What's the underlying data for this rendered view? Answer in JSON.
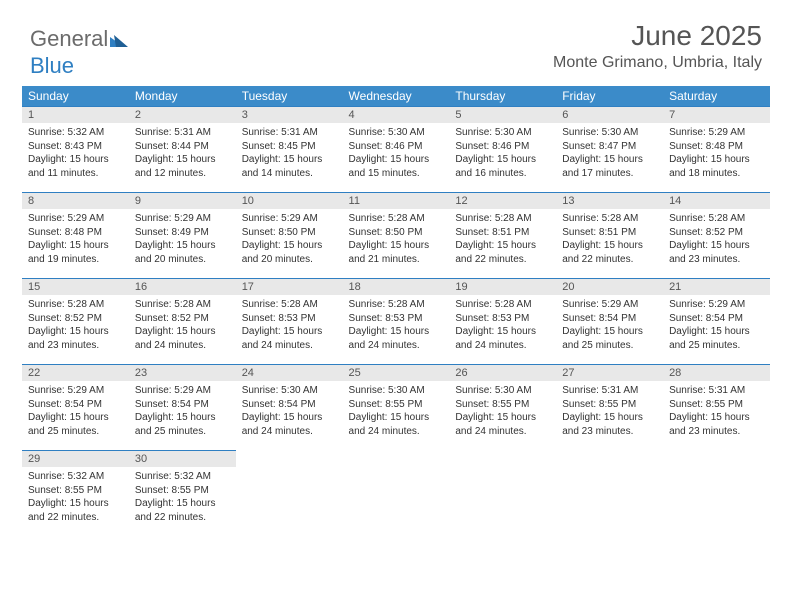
{
  "logo": {
    "part1": "General",
    "part2": "Blue"
  },
  "title": "June 2025",
  "location": "Monte Grimano, Umbria, Italy",
  "accent_color": "#3b8bc9",
  "rule_color": "#2f7fc2",
  "daynum_bg": "#e8e8e8",
  "weekdays": [
    "Sunday",
    "Monday",
    "Tuesday",
    "Wednesday",
    "Thursday",
    "Friday",
    "Saturday"
  ],
  "days": [
    {
      "n": "1",
      "sunrise": "5:32 AM",
      "sunset": "8:43 PM",
      "daylight": "15 hours and 11 minutes."
    },
    {
      "n": "2",
      "sunrise": "5:31 AM",
      "sunset": "8:44 PM",
      "daylight": "15 hours and 12 minutes."
    },
    {
      "n": "3",
      "sunrise": "5:31 AM",
      "sunset": "8:45 PM",
      "daylight": "15 hours and 14 minutes."
    },
    {
      "n": "4",
      "sunrise": "5:30 AM",
      "sunset": "8:46 PM",
      "daylight": "15 hours and 15 minutes."
    },
    {
      "n": "5",
      "sunrise": "5:30 AM",
      "sunset": "8:46 PM",
      "daylight": "15 hours and 16 minutes."
    },
    {
      "n": "6",
      "sunrise": "5:30 AM",
      "sunset": "8:47 PM",
      "daylight": "15 hours and 17 minutes."
    },
    {
      "n": "7",
      "sunrise": "5:29 AM",
      "sunset": "8:48 PM",
      "daylight": "15 hours and 18 minutes."
    },
    {
      "n": "8",
      "sunrise": "5:29 AM",
      "sunset": "8:48 PM",
      "daylight": "15 hours and 19 minutes."
    },
    {
      "n": "9",
      "sunrise": "5:29 AM",
      "sunset": "8:49 PM",
      "daylight": "15 hours and 20 minutes."
    },
    {
      "n": "10",
      "sunrise": "5:29 AM",
      "sunset": "8:50 PM",
      "daylight": "15 hours and 20 minutes."
    },
    {
      "n": "11",
      "sunrise": "5:28 AM",
      "sunset": "8:50 PM",
      "daylight": "15 hours and 21 minutes."
    },
    {
      "n": "12",
      "sunrise": "5:28 AM",
      "sunset": "8:51 PM",
      "daylight": "15 hours and 22 minutes."
    },
    {
      "n": "13",
      "sunrise": "5:28 AM",
      "sunset": "8:51 PM",
      "daylight": "15 hours and 22 minutes."
    },
    {
      "n": "14",
      "sunrise": "5:28 AM",
      "sunset": "8:52 PM",
      "daylight": "15 hours and 23 minutes."
    },
    {
      "n": "15",
      "sunrise": "5:28 AM",
      "sunset": "8:52 PM",
      "daylight": "15 hours and 23 minutes."
    },
    {
      "n": "16",
      "sunrise": "5:28 AM",
      "sunset": "8:52 PM",
      "daylight": "15 hours and 24 minutes."
    },
    {
      "n": "17",
      "sunrise": "5:28 AM",
      "sunset": "8:53 PM",
      "daylight": "15 hours and 24 minutes."
    },
    {
      "n": "18",
      "sunrise": "5:28 AM",
      "sunset": "8:53 PM",
      "daylight": "15 hours and 24 minutes."
    },
    {
      "n": "19",
      "sunrise": "5:28 AM",
      "sunset": "8:53 PM",
      "daylight": "15 hours and 24 minutes."
    },
    {
      "n": "20",
      "sunrise": "5:29 AM",
      "sunset": "8:54 PM",
      "daylight": "15 hours and 25 minutes."
    },
    {
      "n": "21",
      "sunrise": "5:29 AM",
      "sunset": "8:54 PM",
      "daylight": "15 hours and 25 minutes."
    },
    {
      "n": "22",
      "sunrise": "5:29 AM",
      "sunset": "8:54 PM",
      "daylight": "15 hours and 25 minutes."
    },
    {
      "n": "23",
      "sunrise": "5:29 AM",
      "sunset": "8:54 PM",
      "daylight": "15 hours and 25 minutes."
    },
    {
      "n": "24",
      "sunrise": "5:30 AM",
      "sunset": "8:54 PM",
      "daylight": "15 hours and 24 minutes."
    },
    {
      "n": "25",
      "sunrise": "5:30 AM",
      "sunset": "8:55 PM",
      "daylight": "15 hours and 24 minutes."
    },
    {
      "n": "26",
      "sunrise": "5:30 AM",
      "sunset": "8:55 PM",
      "daylight": "15 hours and 24 minutes."
    },
    {
      "n": "27",
      "sunrise": "5:31 AM",
      "sunset": "8:55 PM",
      "daylight": "15 hours and 23 minutes."
    },
    {
      "n": "28",
      "sunrise": "5:31 AM",
      "sunset": "8:55 PM",
      "daylight": "15 hours and 23 minutes."
    },
    {
      "n": "29",
      "sunrise": "5:32 AM",
      "sunset": "8:55 PM",
      "daylight": "15 hours and 22 minutes."
    },
    {
      "n": "30",
      "sunrise": "5:32 AM",
      "sunset": "8:55 PM",
      "daylight": "15 hours and 22 minutes."
    }
  ],
  "labels": {
    "sunrise": "Sunrise: ",
    "sunset": "Sunset: ",
    "daylight": "Daylight: "
  }
}
